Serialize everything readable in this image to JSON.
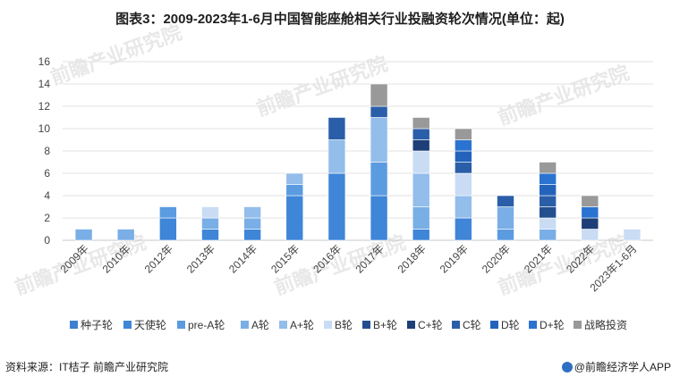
{
  "title": "图表3：2009-2023年1-6月中国智能座舱相关行业投融资轮次情况(单位：起)",
  "source": "资料来源：IT桔子 前瞻产业研究院",
  "brand": "@前瞻经济学人APP",
  "watermark": "前瞻产业研究院",
  "colors": {
    "种子轮": "#3d7fd1",
    "天使轮": "#3f85d8",
    "pre-A轮": "#5b9be0",
    "A轮": "#7aaee6",
    "A+轮": "#93bdeb",
    "B轮": "#c9dcf4",
    "B+轮": "#244f8f",
    "C+轮": "#1d3f78",
    "C轮": "#2a5ea8",
    "D轮": "#2463bb",
    "D+轮": "#2b73d0",
    "战略投资": "#999999"
  },
  "chart_data": {
    "type": "bar",
    "stacked": true,
    "categories": [
      "2009年",
      "2010年",
      "2012年",
      "2013年",
      "2014年",
      "2015年",
      "2016年",
      "2017年",
      "2018年",
      "2019年",
      "2020年",
      "2021年",
      "2022年",
      "2023年1-6月"
    ],
    "series": [
      {
        "name": "种子轮",
        "values": [
          0,
          0,
          0,
          0,
          0,
          0,
          0,
          0,
          0,
          0,
          0,
          0,
          0,
          0
        ]
      },
      {
        "name": "天使轮",
        "values": [
          0,
          0,
          2,
          1,
          1,
          4,
          6,
          4,
          1,
          2,
          0,
          0,
          0,
          0
        ]
      },
      {
        "name": "pre-A轮",
        "values": [
          0,
          0,
          1,
          0,
          0,
          1,
          0,
          3,
          0,
          0,
          1,
          0,
          0,
          0
        ]
      },
      {
        "name": "A轮",
        "values": [
          1,
          1,
          0,
          1,
          1,
          0,
          0,
          0,
          2,
          0,
          2,
          1,
          0,
          0
        ]
      },
      {
        "name": "A+轮",
        "values": [
          0,
          0,
          0,
          0,
          1,
          1,
          3,
          4,
          3,
          2,
          0,
          0,
          0,
          0
        ]
      },
      {
        "name": "B轮",
        "values": [
          0,
          0,
          0,
          1,
          0,
          0,
          0,
          0,
          2,
          2,
          0,
          1,
          1,
          1
        ]
      },
      {
        "name": "B+轮",
        "values": [
          0,
          0,
          0,
          0,
          0,
          0,
          0,
          0,
          0,
          0,
          0,
          1,
          0,
          0
        ]
      },
      {
        "name": "C+轮",
        "values": [
          0,
          0,
          0,
          0,
          0,
          0,
          0,
          0,
          1,
          0,
          0,
          0,
          1,
          0
        ]
      },
      {
        "name": "C轮",
        "values": [
          0,
          0,
          0,
          0,
          0,
          0,
          2,
          1,
          1,
          1,
          1,
          1,
          0,
          0
        ]
      },
      {
        "name": "D轮",
        "values": [
          0,
          0,
          0,
          0,
          0,
          0,
          0,
          0,
          0,
          1,
          0,
          1,
          0,
          0
        ]
      },
      {
        "name": "D+轮",
        "values": [
          0,
          0,
          0,
          0,
          0,
          0,
          0,
          0,
          0,
          1,
          0,
          1,
          1,
          0
        ]
      },
      {
        "name": "战略投资",
        "values": [
          0,
          0,
          0,
          0,
          0,
          0,
          0,
          2,
          1,
          1,
          0,
          1,
          1,
          0
        ]
      }
    ],
    "ylim": [
      0,
      16
    ],
    "yticks": [
      0,
      2,
      4,
      6,
      8,
      10,
      12,
      14,
      16
    ],
    "grid": true,
    "legend": "bottom"
  }
}
